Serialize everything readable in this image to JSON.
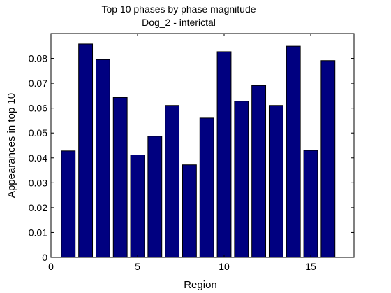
{
  "chart_data": {
    "type": "bar",
    "title": "Top 10 phases by phase magnitude",
    "subtitle": "Dog_2 - interictal",
    "xlabel": "Region",
    "ylabel": "Appearances in top 10",
    "x": [
      1,
      2,
      3,
      4,
      5,
      6,
      7,
      8,
      9,
      10,
      11,
      12,
      13,
      14,
      15,
      16
    ],
    "values": [
      0.0428,
      0.0858,
      0.0795,
      0.0643,
      0.0412,
      0.0487,
      0.0611,
      0.0372,
      0.056,
      0.0827,
      0.0628,
      0.0691,
      0.0611,
      0.0849,
      0.043,
      0.0791
    ],
    "xlim": [
      0,
      17.5
    ],
    "ylim": [
      0,
      0.09
    ],
    "xticks": [
      0,
      5,
      10,
      15
    ],
    "xtick_labels": [
      "0",
      "5",
      "10",
      "15"
    ],
    "yticks": [
      0,
      0.01,
      0.02,
      0.03,
      0.04,
      0.05,
      0.06,
      0.07,
      0.08
    ],
    "ytick_labels": [
      "0",
      "0.01",
      "0.02",
      "0.03",
      "0.04",
      "0.05",
      "0.06",
      "0.07",
      "0.08"
    ],
    "bar_color": "#000080",
    "grid": false,
    "legend": "none"
  }
}
